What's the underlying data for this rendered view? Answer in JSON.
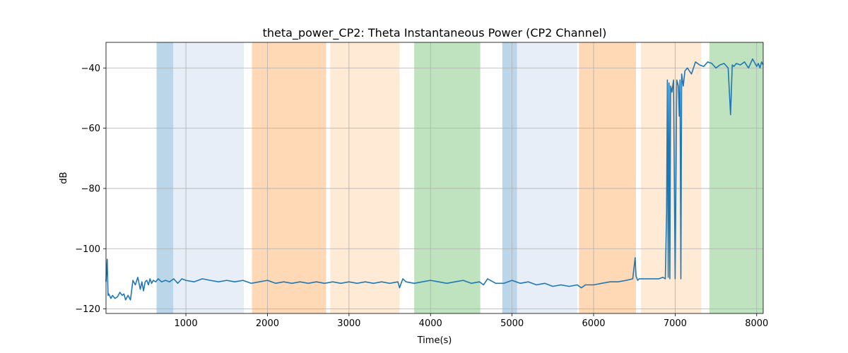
{
  "chart_data": {
    "type": "line",
    "title": "theta_power_CP2: Theta Instantaneous Power (CP2 Channel)",
    "xlabel": "Time(s)",
    "ylabel": "dB",
    "xlim": [
      20,
      8080
    ],
    "ylim": [
      -121.5,
      -31.5
    ],
    "xticks": [
      1000,
      2000,
      3000,
      4000,
      5000,
      6000,
      7000,
      8000
    ],
    "xtick_labels": [
      "1000",
      "2000",
      "3000",
      "4000",
      "5000",
      "6000",
      "7000",
      "8000"
    ],
    "yticks": [
      -120,
      -100,
      -80,
      -60,
      -40
    ],
    "ytick_labels": [
      "−120",
      "−100",
      "−80",
      "−60",
      "−40"
    ],
    "grid": true,
    "line_color": "#1f77b4",
    "bands": [
      {
        "x0": 640,
        "x1": 845,
        "color": "#1f77b4",
        "opacity": 0.3
      },
      {
        "x0": 845,
        "x1": 1710,
        "color": "#aec7e8",
        "opacity": 0.3
      },
      {
        "x0": 1810,
        "x1": 2720,
        "color": "#ff7f0e",
        "opacity": 0.3
      },
      {
        "x0": 2770,
        "x1": 3620,
        "color": "#ffbb78",
        "opacity": 0.3
      },
      {
        "x0": 3800,
        "x1": 4610,
        "color": "#2ca02c",
        "opacity": 0.3
      },
      {
        "x0": 4880,
        "x1": 5060,
        "color": "#1f77b4",
        "opacity": 0.3
      },
      {
        "x0": 5060,
        "x1": 5800,
        "color": "#aec7e8",
        "opacity": 0.3
      },
      {
        "x0": 5820,
        "x1": 6520,
        "color": "#ff7f0e",
        "opacity": 0.3
      },
      {
        "x0": 6580,
        "x1": 7320,
        "color": "#ffbb78",
        "opacity": 0.3
      },
      {
        "x0": 7420,
        "x1": 8080,
        "color": "#2ca02c",
        "opacity": 0.3
      }
    ],
    "series": [
      {
        "x": [
          20,
          35,
          45,
          55,
          80,
          100,
          130,
          160,
          190,
          220,
          240,
          260,
          290,
          320,
          350,
          380,
          410,
          440,
          460,
          480,
          500,
          520,
          540,
          560,
          580,
          600,
          630,
          660,
          700,
          750,
          800,
          850,
          900,
          950,
          1000,
          1100,
          1200,
          1300,
          1400,
          1500,
          1600,
          1700,
          1800,
          1900,
          2000,
          2100,
          2200,
          2300,
          2400,
          2500,
          2600,
          2700,
          2800,
          2900,
          3000,
          3100,
          3200,
          3300,
          3400,
          3500,
          3600,
          3620,
          3660,
          3700,
          3800,
          3900,
          4000,
          4100,
          4200,
          4300,
          4400,
          4500,
          4600,
          4650,
          4700,
          4800,
          4900,
          5000,
          5100,
          5200,
          5300,
          5400,
          5500,
          5600,
          5700,
          5800,
          5850,
          5900,
          6000,
          6100,
          6200,
          6300,
          6400,
          6480,
          6510,
          6520,
          6540,
          6560,
          6600,
          6650,
          6700,
          6750,
          6800,
          6850,
          6880,
          6895,
          6905,
          6915,
          6925,
          6935,
          6945,
          6960,
          6980,
          7000,
          7020,
          7040,
          7050,
          7060,
          7070,
          7080,
          7100,
          7120,
          7150,
          7200,
          7250,
          7300,
          7350,
          7400,
          7450,
          7500,
          7550,
          7600,
          7650,
          7680,
          7700,
          7720,
          7750,
          7800,
          7850,
          7900,
          7950,
          8000,
          8020,
          8040,
          8060,
          8080
        ],
        "y": [
          -111,
          -103.5,
          -115.5,
          -115,
          -116.5,
          -115.5,
          -116.5,
          -116,
          -114.5,
          -115.5,
          -115,
          -117,
          -115.5,
          -117,
          -110.5,
          -112,
          -109.5,
          -113.5,
          -111,
          -114,
          -111,
          -110.5,
          -112,
          -110,
          -111.5,
          -110.5,
          -111,
          -110,
          -111,
          -110.5,
          -111,
          -110,
          -111.5,
          -110,
          -110.5,
          -111,
          -110,
          -110.5,
          -111,
          -110.5,
          -111,
          -110.5,
          -111.5,
          -111,
          -110.5,
          -111.5,
          -111,
          -111.5,
          -111,
          -111.5,
          -111,
          -111.5,
          -111,
          -111.5,
          -111,
          -111.5,
          -111,
          -111.5,
          -111,
          -111.5,
          -111,
          -113,
          -110,
          -111,
          -111.5,
          -111,
          -110.5,
          -111,
          -111.5,
          -111,
          -110.5,
          -111.5,
          -111,
          -112,
          -110,
          -111.5,
          -111.5,
          -110.5,
          -111.5,
          -111,
          -112,
          -111.5,
          -112.5,
          -112,
          -112.5,
          -112,
          -113,
          -112,
          -112,
          -111.5,
          -111,
          -111,
          -110.5,
          -110,
          -103,
          -109,
          -110.5,
          -110,
          -110,
          -110,
          -110,
          -110,
          -110,
          -109.5,
          -110,
          -88,
          -44,
          -109.5,
          -45,
          -110,
          -46,
          -48,
          -44,
          -110,
          -44,
          -46,
          -56,
          -44,
          -110,
          -42,
          -46,
          -41,
          -40,
          -42,
          -38,
          -39,
          -39.5,
          -38,
          -38.5,
          -40,
          -39,
          -38.5,
          -40,
          -55.5,
          -39,
          -39.5,
          -38.5,
          -39,
          -38,
          -40,
          -37,
          -39.5,
          -38.5,
          -40,
          -38,
          -39
        ]
      }
    ]
  }
}
